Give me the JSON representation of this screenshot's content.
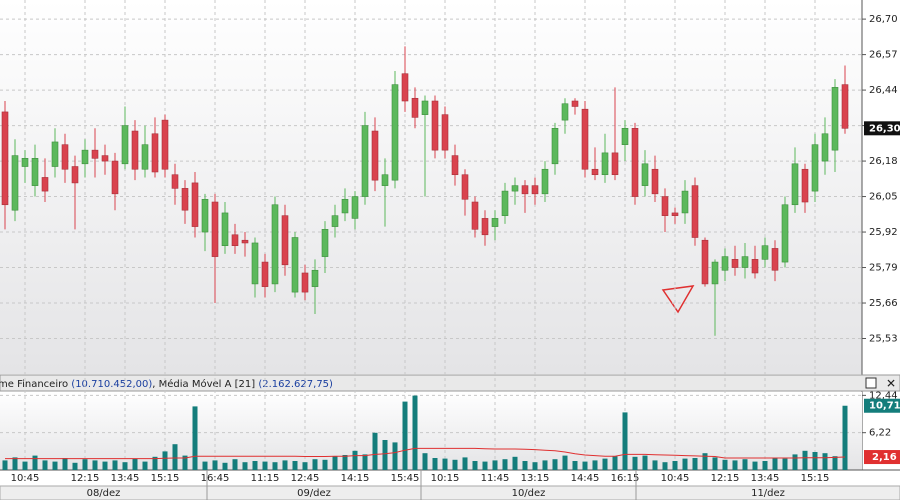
{
  "chart_data": [
    {
      "type": "candlestick",
      "categories": [
        null,
        null,
        "10:45",
        null,
        null,
        null,
        null,
        null,
        "12:15",
        null,
        null,
        null,
        "13:45",
        null,
        null,
        null,
        "15:15",
        null,
        null,
        null,
        null,
        "16:45",
        null,
        null,
        null,
        null,
        "11:15",
        null,
        null,
        null,
        "12:45",
        null,
        null,
        null,
        null,
        "14:15",
        null,
        null,
        null,
        null,
        "15:45",
        null,
        null,
        null,
        "10:15",
        null,
        null,
        null,
        null,
        "11:45",
        null,
        null,
        null,
        "13:15",
        null,
        null,
        null,
        null,
        "14:45",
        null,
        null,
        null,
        "16:15",
        null,
        null,
        null,
        null,
        "10:45",
        null,
        null,
        null,
        null,
        "12:15",
        null,
        null,
        null,
        "13:45",
        null,
        null,
        null,
        null,
        "15:15",
        null,
        null,
        null
      ],
      "days": [
        "08/dez",
        "09/dez",
        "10/dez",
        "11/dez"
      ],
      "up_color": "#5cb85c",
      "down_color": "#d9434e",
      "open": [
        26.36,
        26.0,
        26.16,
        26.09,
        26.12,
        26.16,
        26.24,
        26.16,
        26.17,
        26.22,
        26.2,
        26.18,
        26.17,
        26.29,
        26.15,
        26.28,
        26.33,
        26.13,
        26.08,
        26.1,
        25.92,
        26.03,
        25.87,
        25.91,
        25.89,
        25.73,
        25.81,
        25.73,
        25.98,
        25.7,
        25.77,
        25.72,
        25.83,
        25.94,
        25.99,
        25.97,
        26.05,
        26.29,
        26.09,
        26.11,
        26.5,
        26.41,
        26.35,
        26.4,
        26.35,
        26.2,
        26.13,
        26.03,
        25.97,
        25.94,
        25.98,
        26.07,
        26.09,
        26.09,
        26.06,
        26.17,
        26.33,
        26.4,
        26.37,
        26.15,
        26.13,
        26.21,
        26.24,
        26.3,
        26.09,
        26.15,
        26.05,
        25.99,
        25.99,
        26.09,
        25.89,
        25.73,
        25.78,
        25.82,
        25.79,
        25.82,
        25.82,
        25.86,
        25.81,
        26.02,
        26.15,
        26.07,
        26.18,
        26.22,
        26.46
      ],
      "high": [
        26.4,
        26.26,
        26.22,
        26.24,
        26.19,
        26.3,
        26.28,
        26.2,
        26.26,
        26.3,
        26.24,
        26.21,
        26.38,
        26.33,
        26.31,
        26.34,
        26.35,
        26.17,
        26.11,
        26.14,
        26.06,
        26.06,
        26.03,
        25.95,
        25.92,
        25.9,
        25.84,
        26.05,
        26.02,
        25.92,
        25.8,
        25.82,
        25.96,
        26.02,
        26.08,
        26.07,
        26.36,
        26.34,
        26.19,
        26.51,
        26.6,
        26.45,
        26.42,
        26.42,
        26.38,
        26.24,
        26.15,
        26.05,
        26.0,
        26.0,
        26.1,
        26.12,
        26.11,
        26.12,
        26.18,
        26.32,
        26.41,
        26.41,
        26.4,
        26.23,
        26.28,
        26.45,
        26.33,
        26.32,
        26.22,
        26.2,
        26.08,
        26.01,
        26.11,
        26.12,
        25.9,
        25.82,
        25.86,
        25.87,
        25.88,
        25.87,
        25.9,
        25.89,
        26.05,
        26.23,
        26.17,
        26.28,
        26.34,
        26.48,
        26.53
      ],
      "low": [
        25.93,
        25.96,
        26.1,
        26.05,
        26.03,
        26.12,
        26.1,
        25.93,
        26.12,
        26.12,
        26.13,
        26.0,
        26.15,
        26.11,
        26.12,
        26.12,
        26.12,
        26.02,
        25.95,
        25.9,
        25.85,
        25.66,
        25.84,
        25.84,
        25.83,
        25.68,
        25.68,
        25.7,
        25.76,
        25.68,
        25.67,
        25.62,
        25.77,
        25.9,
        25.96,
        25.93,
        26.02,
        26.07,
        25.94,
        26.08,
        26.36,
        26.3,
        26.05,
        26.19,
        26.19,
        26.09,
        25.98,
        25.9,
        25.87,
        25.89,
        25.95,
        26.02,
        25.99,
        26.02,
        26.03,
        26.13,
        26.28,
        26.35,
        26.12,
        26.11,
        26.1,
        26.11,
        26.18,
        26.02,
        26.05,
        26.03,
        25.92,
        25.95,
        25.95,
        25.87,
        25.72,
        25.54,
        25.74,
        25.76,
        25.75,
        25.75,
        25.79,
        25.74,
        25.79,
        25.99,
        25.99,
        26.03,
        26.13,
        26.14,
        26.28
      ],
      "close": [
        26.02,
        26.2,
        26.19,
        26.19,
        26.07,
        26.25,
        26.15,
        26.1,
        26.22,
        26.19,
        26.18,
        26.06,
        26.31,
        26.15,
        26.24,
        26.14,
        26.15,
        26.08,
        26.0,
        25.94,
        26.04,
        25.83,
        25.99,
        25.87,
        25.88,
        25.88,
        25.72,
        26.02,
        25.8,
        25.9,
        25.7,
        25.78,
        25.93,
        25.98,
        26.04,
        26.05,
        26.31,
        26.11,
        26.13,
        26.46,
        26.4,
        26.34,
        26.4,
        26.22,
        26.22,
        26.13,
        26.04,
        25.93,
        25.91,
        25.97,
        26.07,
        26.09,
        26.06,
        26.06,
        26.15,
        26.3,
        26.39,
        26.38,
        26.15,
        26.13,
        26.21,
        26.13,
        26.3,
        26.05,
        26.17,
        26.06,
        25.98,
        25.98,
        26.07,
        25.9,
        25.73,
        25.81,
        25.83,
        25.79,
        25.83,
        25.77,
        25.87,
        25.78,
        26.02,
        26.17,
        26.03,
        26.24,
        26.28,
        26.45,
        26.3
      ],
      "last_label": {
        "value": 26.3,
        "label": "26,30"
      },
      "ylim": [
        25.4,
        26.77
      ],
      "yticks": [
        {
          "value": 26.7,
          "label": "26,70"
        },
        {
          "value": 26.57,
          "label": "26,57"
        },
        {
          "value": 26.44,
          "label": "26,44"
        },
        {
          "value": 26.31,
          "label": "26,31"
        },
        {
          "value": 26.18,
          "label": "26,18"
        },
        {
          "value": 26.05,
          "label": "26,05"
        },
        {
          "value": 25.92,
          "label": "25,92"
        },
        {
          "value": 25.79,
          "label": "25,79"
        },
        {
          "value": 25.66,
          "label": "25,66"
        },
        {
          "value": 25.53,
          "label": "25,53"
        }
      ],
      "grid": true
    },
    {
      "type": "bar",
      "title": [
        "me Financeiro ",
        "(10.710.452,00)",
        ", Média Móvel A [21] ",
        "(2.162.627,75)"
      ],
      "color": "#147d7b",
      "ma_color": "#e03030",
      "values": [
        1.6,
        2.1,
        1.4,
        2.4,
        1.6,
        1.4,
        2.0,
        1.2,
        1.8,
        1.6,
        1.4,
        1.6,
        1.3,
        1.9,
        1.4,
        2.2,
        3.1,
        4.3,
        2.4,
        10.6,
        1.4,
        1.6,
        1.2,
        1.8,
        1.3,
        1.5,
        1.4,
        1.3,
        1.6,
        1.5,
        1.3,
        1.8,
        1.7,
        2.3,
        2.5,
        3.2,
        2.6,
        6.2,
        5.0,
        4.6,
        11.4,
        12.4,
        2.8,
        2.0,
        1.9,
        1.7,
        2.1,
        1.5,
        1.4,
        1.6,
        1.8,
        2.2,
        1.5,
        1.3,
        1.6,
        1.8,
        2.4,
        1.5,
        1.4,
        1.6,
        1.9,
        2.3,
        9.6,
        2.2,
        2.4,
        1.6,
        1.3,
        1.5,
        1.9,
        2.0,
        2.8,
        2.1,
        1.7,
        1.6,
        1.8,
        1.4,
        1.5,
        2.0,
        1.9,
        2.6,
        3.2,
        3.0,
        2.8,
        2.3,
        10.71
      ],
      "ma": [
        1.9,
        1.9,
        1.9,
        1.9,
        1.9,
        1.9,
        1.9,
        1.9,
        1.9,
        1.9,
        1.9,
        1.9,
        1.9,
        1.9,
        1.9,
        1.9,
        1.95,
        2.0,
        2.0,
        2.3,
        2.3,
        2.3,
        2.3,
        2.3,
        2.3,
        2.3,
        2.3,
        2.3,
        2.3,
        2.3,
        2.25,
        2.25,
        2.25,
        2.3,
        2.3,
        2.4,
        2.4,
        2.6,
        2.7,
        2.9,
        3.3,
        3.6,
        3.6,
        3.6,
        3.6,
        3.6,
        3.6,
        3.6,
        3.55,
        3.5,
        3.5,
        3.5,
        3.45,
        3.4,
        3.3,
        3.2,
        3.0,
        2.7,
        2.5,
        2.4,
        2.3,
        2.3,
        2.6,
        2.6,
        2.6,
        2.55,
        2.5,
        2.45,
        2.4,
        2.35,
        2.3,
        2.25,
        2.0,
        2.0,
        2.0,
        2.0,
        2.0,
        2.0,
        2.0,
        2.0,
        2.05,
        2.05,
        2.05,
        2.1,
        2.16
      ],
      "last_label": {
        "value": 10.71,
        "label": "10,71"
      },
      "ma_label": {
        "value": 2.16,
        "label": "2,16"
      },
      "ylim": [
        0,
        13
      ],
      "yticks": [
        {
          "value": 12.44,
          "label": "12,44"
        },
        {
          "value": 6.22,
          "label": "6,22"
        }
      ]
    }
  ]
}
